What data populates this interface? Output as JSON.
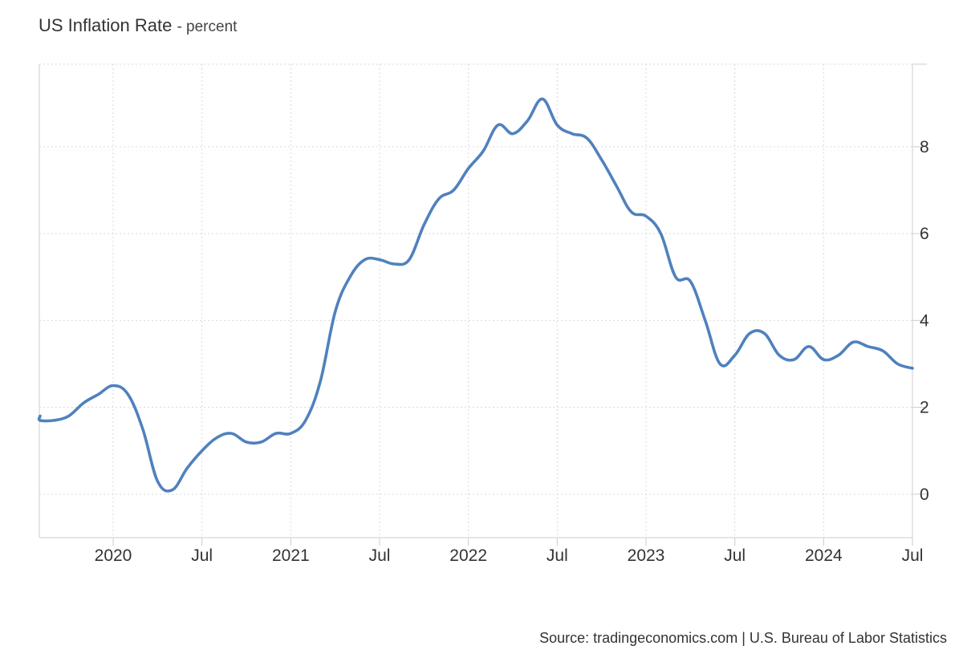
{
  "chart_data": {
    "type": "line",
    "title": "US Inflation Rate",
    "subtitle": "- percent",
    "source": "Source: tradingeconomics.com | U.S. Bureau of Labor Statistics",
    "ylim": [
      -1,
      9.9
    ],
    "y_ticks": [
      "0",
      "2",
      "4",
      "6",
      "8"
    ],
    "grid": true,
    "y_axis_side": "right",
    "x_ticks": [
      "2020",
      "Jul",
      "2021",
      "Jul",
      "2022",
      "Jul",
      "2023",
      "Jul",
      "2024",
      "Jul"
    ],
    "line_color": "#4F81BD",
    "series": [
      {
        "x": [
          "2019-07",
          "2019-08",
          "2019-09",
          "2019-10",
          "2019-11",
          "2019-12",
          "2020-01",
          "2020-02",
          "2020-03",
          "2020-04",
          "2020-05",
          "2020-06",
          "2020-07",
          "2020-08",
          "2020-09",
          "2020-10",
          "2020-11",
          "2020-12",
          "2021-01",
          "2021-02",
          "2021-03",
          "2021-04",
          "2021-05",
          "2021-06",
          "2021-07",
          "2021-08",
          "2021-09",
          "2021-10",
          "2021-11",
          "2021-12",
          "2022-01",
          "2022-02",
          "2022-03",
          "2022-04",
          "2022-05",
          "2022-06",
          "2022-07",
          "2022-08",
          "2022-09",
          "2022-10",
          "2022-11",
          "2022-12",
          "2023-01",
          "2023-02",
          "2023-03",
          "2023-04",
          "2023-05",
          "2023-06",
          "2023-07",
          "2023-08",
          "2023-09",
          "2023-10",
          "2023-11",
          "2023-12",
          "2024-01",
          "2024-02",
          "2024-03",
          "2024-04",
          "2024-05",
          "2024-06",
          "2024-07"
        ],
        "values": [
          1.8,
          1.7,
          1.7,
          1.8,
          2.1,
          2.3,
          2.5,
          2.3,
          1.5,
          0.3,
          0.1,
          0.6,
          1.0,
          1.3,
          1.4,
          1.2,
          1.2,
          1.4,
          1.4,
          1.7,
          2.6,
          4.2,
          5.0,
          5.4,
          5.4,
          5.3,
          5.4,
          6.2,
          6.8,
          7.0,
          7.5,
          7.9,
          8.5,
          8.3,
          8.6,
          9.1,
          8.5,
          8.3,
          8.2,
          7.7,
          7.1,
          6.5,
          6.4,
          6.0,
          5.0,
          4.9,
          4.0,
          3.0,
          3.2,
          3.7,
          3.7,
          3.2,
          3.1,
          3.4,
          3.1,
          3.2,
          3.5,
          3.4,
          3.3,
          3.0,
          2.9
        ]
      }
    ]
  }
}
